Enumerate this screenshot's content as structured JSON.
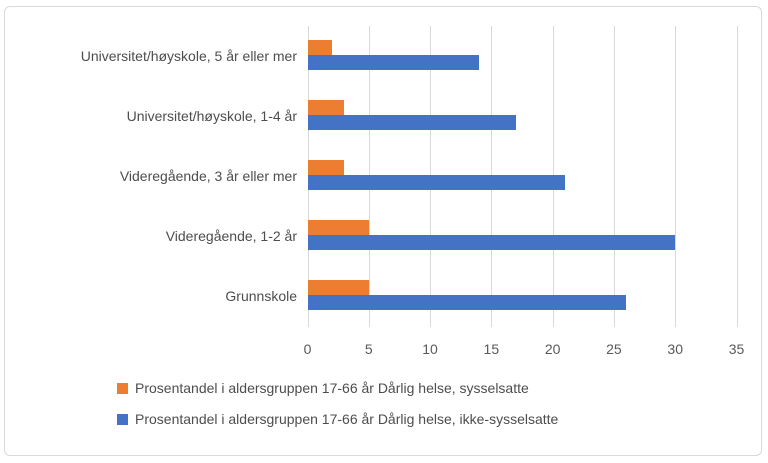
{
  "chart_data": {
    "type": "bar",
    "orientation": "horizontal",
    "categories": [
      "Universitet/høyskole, 5 år eller mer",
      "Universitet/høyskole, 1-4 år",
      "Videregående, 3 år eller mer",
      "Videregående, 1-2 år",
      "Grunnskole"
    ],
    "series": [
      {
        "id": "sysselsatte",
        "name": "Prosentandel i aldersgruppen 17-66 år Dårlig helse, sysselsatte",
        "color": "#ED7D31",
        "values": [
          2,
          3,
          3,
          5,
          5
        ]
      },
      {
        "id": "ikke-sysselsatte",
        "name": "Prosentandel i aldersgruppen 17-66 år Dårlig helse, ikke-sysselsatte",
        "color": "#4472C4",
        "values": [
          14,
          17,
          21,
          30,
          26
        ]
      }
    ],
    "x_ticks": [
      0,
      5,
      10,
      15,
      20,
      25,
      30,
      35
    ],
    "xlim": [
      0,
      35
    ],
    "grid": "vertical-gridlines",
    "legend_position": "bottom-left",
    "colors": {
      "gridline": "#D9D9D9",
      "frame_border": "#D9D9D9",
      "text": "#4d4d4d",
      "tick_text": "#595959"
    }
  }
}
